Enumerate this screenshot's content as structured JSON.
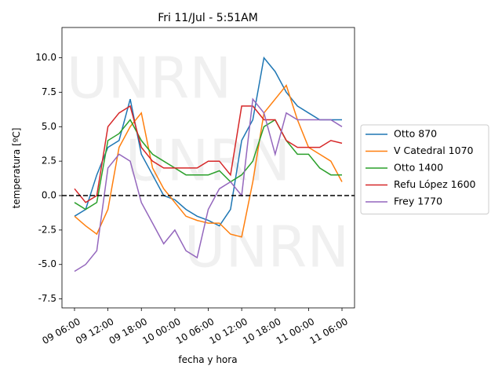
{
  "chart_data": {
    "type": "line",
    "title": "Fri 11/Jul - 5:51AM",
    "xlabel": "fecha y hora",
    "ylabel": "temperatura [ºC]",
    "watermark": "UNRN",
    "reference_line": 0,
    "x": [
      "09 06:00",
      "09 08:00",
      "09 10:00",
      "09 12:00",
      "09 14:00",
      "09 16:00",
      "09 18:00",
      "09 20:00",
      "09 22:00",
      "10 00:00",
      "10 02:00",
      "10 04:00",
      "10 06:00",
      "10 08:00",
      "10 10:00",
      "10 12:00",
      "10 14:00",
      "10 16:00",
      "10 18:00",
      "10 20:00",
      "10 22:00",
      "11 00:00",
      "11 02:00",
      "11 04:00",
      "11 06:00"
    ],
    "series": [
      {
        "name": "Otto 870",
        "color": "#1f77b4",
        "values": [
          -1.5,
          -1,
          1.5,
          3.5,
          4,
          7,
          3,
          1.5,
          0,
          -0.3,
          -1,
          -1.5,
          -1.8,
          -2.2,
          -1,
          4,
          5.5,
          10,
          9,
          7.5,
          6.5,
          6,
          5.5,
          5.5,
          5.5
        ]
      },
      {
        "name": "V Catedral 1070",
        "color": "#ff7f0e",
        "values": [
          -1.5,
          -2.2,
          -2.8,
          -1,
          3.5,
          5,
          6,
          2,
          0.5,
          -0.5,
          -1.5,
          -1.8,
          -2,
          -2,
          -2.8,
          -3,
          1,
          6,
          7,
          8,
          5.5,
          3.5,
          3,
          2.5,
          1
        ]
      },
      {
        "name": "Otto 1400",
        "color": "#2ca02c",
        "values": [
          -0.5,
          -1,
          -0.5,
          4,
          4.5,
          5.5,
          4,
          3,
          2.5,
          2,
          1.5,
          1.5,
          1.5,
          1.8,
          1,
          1.5,
          2.5,
          5,
          5.5,
          4,
          3,
          3,
          2,
          1.5,
          1.5
        ]
      },
      {
        "name": "Refu López 1600",
        "color": "#d62728",
        "values": [
          0.5,
          -0.5,
          0,
          5,
          6,
          6.5,
          3.5,
          2.5,
          2,
          2,
          2,
          2,
          2.5,
          2.5,
          1.5,
          6.5,
          6.5,
          5.5,
          5.5,
          4,
          3.5,
          3.5,
          3.5,
          4,
          3.8
        ]
      },
      {
        "name": "Frey 1770",
        "color": "#9467bd",
        "values": [
          -5.5,
          -5,
          -4,
          2,
          3,
          2.5,
          -0.5,
          -2,
          -3.5,
          -2.5,
          -4,
          -4.5,
          -1,
          0.5,
          1,
          0,
          7,
          6,
          3,
          6,
          5.5,
          5.5,
          5.5,
          5.5,
          5
        ]
      }
    ],
    "xlim": [
      "09 03:45",
      "11 08:15"
    ],
    "xticks": [
      "09 06:00",
      "09 12:00",
      "09 18:00",
      "10 00:00",
      "10 06:00",
      "10 12:00",
      "10 18:00",
      "11 00:00",
      "11 06:00"
    ],
    "ylim": [
      -8.15,
      12.2
    ],
    "yticks": [
      -7.5,
      -5.0,
      -2.5,
      0.0,
      2.5,
      5.0,
      7.5,
      10.0
    ],
    "legend": "right"
  }
}
